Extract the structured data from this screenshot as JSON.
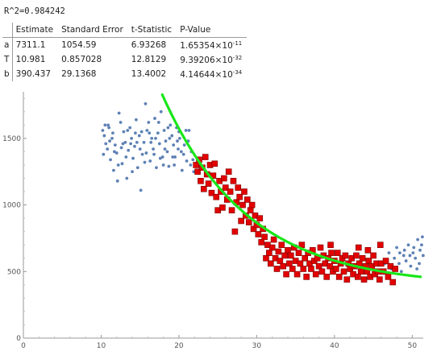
{
  "r2_text": "R^2=0.984242",
  "table": {
    "headers": [
      "",
      "Estimate",
      "Standard Error",
      "t-Statistic",
      "P-Value"
    ],
    "rows": [
      {
        "param": "a",
        "estimate": "7311.1",
        "std_error": "1054.59",
        "t_stat": "6.93268",
        "p_mantissa": "1.65354",
        "p_times": "×10",
        "p_exp": "-11"
      },
      {
        "param": "T",
        "estimate": "10.981",
        "std_error": "0.857028",
        "t_stat": "12.8129",
        "p_mantissa": "9.39206",
        "p_times": "×10",
        "p_exp": "-32"
      },
      {
        "param": "b",
        "estimate": "390.437",
        "std_error": "29.1368",
        "t_stat": "13.4002",
        "p_mantissa": "4.14644",
        "p_times": "×10",
        "p_exp": "-34"
      }
    ]
  },
  "chart_data": {
    "type": "scatter",
    "title": "",
    "xlabel": "",
    "ylabel": "",
    "xlim": [
      0,
      51
    ],
    "ylim": [
      0,
      1850
    ],
    "x_ticks": [
      0,
      10,
      20,
      30,
      40,
      50
    ],
    "y_ticks": [
      0,
      500,
      1000,
      1500
    ],
    "grid": false,
    "colors": {
      "all": "#5e81b5",
      "fit": "#e30000",
      "curve": "#19e619"
    },
    "series": [
      {
        "role": "all data",
        "marker": "dot",
        "color": "#5e81b5",
        "points": [
          [
            10.2,
            1560
          ],
          [
            10.4,
            1520
          ],
          [
            10.6,
            1460
          ],
          [
            10.8,
            1420
          ],
          [
            11.0,
            1580
          ],
          [
            11.2,
            1340
          ],
          [
            11.4,
            1500
          ],
          [
            11.6,
            1260
          ],
          [
            11.8,
            1450
          ],
          [
            12.0,
            1390
          ],
          [
            12.3,
            1690
          ],
          [
            12.5,
            1620
          ],
          [
            12.7,
            1310
          ],
          [
            12.9,
            1550
          ],
          [
            13.1,
            1470
          ],
          [
            13.3,
            1200
          ],
          [
            13.5,
            1410
          ],
          [
            13.7,
            1580
          ],
          [
            13.9,
            1500
          ],
          [
            14.1,
            1350
          ],
          [
            14.3,
            1440
          ],
          [
            14.5,
            1640
          ],
          [
            14.7,
            1280
          ],
          [
            14.9,
            1520
          ],
          [
            15.1,
            1110
          ],
          [
            15.3,
            1380
          ],
          [
            15.5,
            1470
          ],
          [
            15.7,
            1760
          ],
          [
            15.9,
            1560
          ],
          [
            16.1,
            1620
          ],
          [
            16.3,
            1330
          ],
          [
            16.5,
            1500
          ],
          [
            16.7,
            1420
          ],
          [
            16.9,
            1650
          ],
          [
            17.1,
            1280
          ],
          [
            17.3,
            1540
          ],
          [
            17.5,
            1460
          ],
          [
            17.7,
            1700
          ],
          [
            17.9,
            1360
          ],
          [
            18.1,
            1560
          ],
          [
            18.3,
            1480
          ],
          [
            18.5,
            1400
          ],
          [
            18.7,
            1290
          ],
          [
            18.9,
            1600
          ],
          [
            19.1,
            1520
          ],
          [
            19.3,
            1450
          ],
          [
            19.5,
            1360
          ],
          [
            19.7,
            1580
          ],
          [
            19.9,
            1420
          ],
          [
            20.1,
            1500
          ],
          [
            20.4,
            1260
          ],
          [
            20.7,
            1450
          ],
          [
            21.0,
            1330
          ],
          [
            21.3,
            1560
          ],
          [
            21.6,
            1400
          ],
          [
            21.9,
            1250
          ],
          [
            10.5,
            1600
          ],
          [
            11.1,
            1480
          ],
          [
            11.7,
            1400
          ],
          [
            12.2,
            1300
          ],
          [
            12.8,
            1460
          ],
          [
            13.4,
            1560
          ],
          [
            14.0,
            1250
          ],
          [
            14.6,
            1470
          ],
          [
            15.2,
            1550
          ],
          [
            15.8,
            1390
          ],
          [
            16.4,
            1470
          ],
          [
            17.0,
            1500
          ],
          [
            17.6,
            1350
          ],
          [
            18.2,
            1420
          ],
          [
            18.8,
            1500
          ],
          [
            19.4,
            1300
          ],
          [
            20.0,
            1550
          ],
          [
            20.6,
            1380
          ],
          [
            21.2,
            1480
          ],
          [
            21.8,
            1340
          ],
          [
            10.3,
            1380
          ],
          [
            10.9,
            1600
          ],
          [
            11.5,
            1540
          ],
          [
            12.1,
            1180
          ],
          [
            12.6,
            1430
          ],
          [
            13.2,
            1360
          ],
          [
            13.8,
            1460
          ],
          [
            14.4,
            1540
          ],
          [
            15.0,
            1420
          ],
          [
            15.6,
            1320
          ],
          [
            16.2,
            1540
          ],
          [
            16.8,
            1380
          ],
          [
            17.4,
            1620
          ],
          [
            18.0,
            1300
          ],
          [
            18.6,
            1580
          ],
          [
            19.2,
            1360
          ],
          [
            19.8,
            1480
          ],
          [
            20.3,
            1400
          ],
          [
            20.9,
            1560
          ],
          [
            21.5,
            1300
          ],
          [
            46.5,
            560
          ],
          [
            47.0,
            640
          ],
          [
            47.3,
            520
          ],
          [
            47.7,
            600
          ],
          [
            48.0,
            680
          ],
          [
            48.3,
            560
          ],
          [
            48.6,
            500
          ],
          [
            48.9,
            620
          ],
          [
            49.2,
            580
          ],
          [
            49.5,
            700
          ],
          [
            49.8,
            540
          ],
          [
            50.1,
            640
          ],
          [
            50.4,
            600
          ],
          [
            50.7,
            740
          ],
          [
            51.0,
            660
          ],
          [
            51.2,
            700
          ],
          [
            51.4,
            620
          ],
          [
            50.9,
            560
          ],
          [
            50.2,
            680
          ],
          [
            49.0,
            660
          ],
          [
            47.9,
            520
          ],
          [
            48.4,
            640
          ],
          [
            50.6,
            520
          ],
          [
            51.3,
            760
          ],
          [
            49.7,
            620
          ]
        ]
      },
      {
        "role": "fit data",
        "marker": "square",
        "color": "#e30000",
        "points": [
          [
            22.2,
            1300
          ],
          [
            22.4,
            1250
          ],
          [
            22.6,
            1340
          ],
          [
            22.8,
            1180
          ],
          [
            23.0,
            1280
          ],
          [
            23.2,
            1120
          ],
          [
            23.4,
            1360
          ],
          [
            23.6,
            1230
          ],
          [
            23.8,
            1160
          ],
          [
            24.0,
            1300
          ],
          [
            24.2,
            1090
          ],
          [
            24.4,
            1220
          ],
          [
            24.6,
            1310
          ],
          [
            24.8,
            1060
          ],
          [
            25.0,
            960
          ],
          [
            25.2,
            1180
          ],
          [
            25.4,
            1100
          ],
          [
            25.6,
            980
          ],
          [
            25.8,
            1200
          ],
          [
            26.0,
            1130
          ],
          [
            26.2,
            1040
          ],
          [
            26.4,
            1250
          ],
          [
            26.6,
            1100
          ],
          [
            26.8,
            960
          ],
          [
            27.0,
            1180
          ],
          [
            27.2,
            800
          ],
          [
            27.4,
            1020
          ],
          [
            27.6,
            1130
          ],
          [
            27.8,
            1060
          ],
          [
            28.0,
            880
          ],
          [
            28.2,
            1000
          ],
          [
            28.4,
            1100
          ],
          [
            28.6,
            920
          ],
          [
            28.8,
            1040
          ],
          [
            29.0,
            870
          ],
          [
            29.2,
            960
          ],
          [
            29.4,
            1000
          ],
          [
            29.6,
            820
          ],
          [
            29.8,
            920
          ],
          [
            30.0,
            850
          ],
          [
            30.2,
            780
          ],
          [
            30.4,
            900
          ],
          [
            30.6,
            720
          ],
          [
            30.8,
            820
          ],
          [
            31.0,
            760
          ],
          [
            31.2,
            600
          ],
          [
            31.4,
            700
          ],
          [
            31.6,
            640
          ],
          [
            31.8,
            560
          ],
          [
            32.0,
            680
          ],
          [
            32.2,
            740
          ],
          [
            32.4,
            600
          ],
          [
            32.6,
            520
          ],
          [
            32.8,
            650
          ],
          [
            33.0,
            580
          ],
          [
            33.2,
            700
          ],
          [
            33.4,
            540
          ],
          [
            33.6,
            620
          ],
          [
            33.8,
            480
          ],
          [
            34.0,
            660
          ],
          [
            34.2,
            560
          ],
          [
            34.4,
            620
          ],
          [
            34.6,
            520
          ],
          [
            34.8,
            680
          ],
          [
            35.0,
            580
          ],
          [
            35.2,
            480
          ],
          [
            35.4,
            640
          ],
          [
            35.6,
            560
          ],
          [
            35.8,
            700
          ],
          [
            36.0,
            520
          ],
          [
            36.2,
            600
          ],
          [
            36.4,
            460
          ],
          [
            36.6,
            640
          ],
          [
            36.8,
            560
          ],
          [
            37.0,
            520
          ],
          [
            37.2,
            660
          ],
          [
            37.4,
            580
          ],
          [
            37.6,
            480
          ],
          [
            37.8,
            600
          ],
          [
            38.0,
            540
          ],
          [
            38.2,
            680
          ],
          [
            38.4,
            500
          ],
          [
            38.6,
            620
          ],
          [
            38.8,
            560
          ],
          [
            39.0,
            460
          ],
          [
            39.2,
            600
          ],
          [
            39.4,
            540
          ],
          [
            39.6,
            640
          ],
          [
            39.8,
            500
          ],
          [
            40.0,
            580
          ],
          [
            40.2,
            520
          ],
          [
            40.4,
            640
          ],
          [
            40.6,
            460
          ],
          [
            40.8,
            560
          ],
          [
            41.0,
            600
          ],
          [
            41.2,
            500
          ],
          [
            41.4,
            620
          ],
          [
            41.6,
            440
          ],
          [
            41.8,
            560
          ],
          [
            42.0,
            520
          ],
          [
            42.2,
            600
          ],
          [
            42.4,
            480
          ],
          [
            42.6,
            540
          ],
          [
            42.8,
            620
          ],
          [
            43.0,
            460
          ],
          [
            43.2,
            560
          ],
          [
            43.4,
            500
          ],
          [
            43.6,
            600
          ],
          [
            43.8,
            440
          ],
          [
            44.0,
            540
          ],
          [
            44.2,
            500
          ],
          [
            44.4,
            580
          ],
          [
            44.6,
            460
          ],
          [
            44.8,
            540
          ],
          [
            45.0,
            620
          ],
          [
            45.2,
            480
          ],
          [
            45.4,
            560
          ],
          [
            45.6,
            500
          ],
          [
            45.8,
            440
          ],
          [
            46.0,
            560
          ],
          [
            46.3,
            500
          ],
          [
            46.6,
            580
          ],
          [
            46.9,
            460
          ],
          [
            47.2,
            540
          ],
          [
            47.5,
            420
          ],
          [
            47.8,
            520
          ],
          [
            45.9,
            700
          ],
          [
            44.3,
            660
          ],
          [
            43.1,
            680
          ],
          [
            39.5,
            700
          ]
        ]
      }
    ],
    "fit_curve": {
      "color": "#19e619",
      "a": 7311.1,
      "T": 10.981,
      "b": 390.437,
      "x_range": [
        17.8,
        51.2
      ]
    }
  }
}
